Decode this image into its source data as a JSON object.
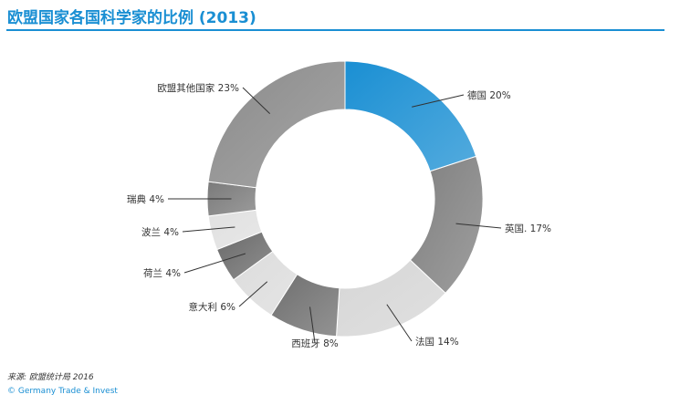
{
  "chart_data": {
    "type": "pie",
    "title": "欧盟国家各国科学家的比例 (2013)",
    "slices": [
      {
        "name": "德国",
        "label": "德国 20%",
        "value": 20,
        "color": "#1a8fd3"
      },
      {
        "name": "英国",
        "label": "英国. 17%",
        "value": 17,
        "color": "#7f7f7f"
      },
      {
        "name": "法国",
        "label": "法国  14%",
        "value": 14,
        "color": "#d6d6d6"
      },
      {
        "name": "西班牙",
        "label": "西班牙 8%",
        "value": 8,
        "color": "#6f6f6f"
      },
      {
        "name": "意大利",
        "label": "意大利 6%",
        "value": 6,
        "color": "#dcdcdc"
      },
      {
        "name": "荷兰",
        "label": "荷兰 4%",
        "value": 4,
        "color": "#6a6a6a"
      },
      {
        "name": "波兰",
        "label": "波兰 4%",
        "value": 4,
        "color": "#e0e0e0"
      },
      {
        "name": "瑞典",
        "label": "瑞典 4%",
        "value": 4,
        "color": "#7a7a7a"
      },
      {
        "name": "欧盟其他国家",
        "label": "欧盟其他国家 23%",
        "value": 23,
        "color": "#8a8a8a"
      }
    ]
  },
  "footer": {
    "source": "来源: 欧盟统计局 2016",
    "copyright": "© Germany Trade & Invest"
  }
}
